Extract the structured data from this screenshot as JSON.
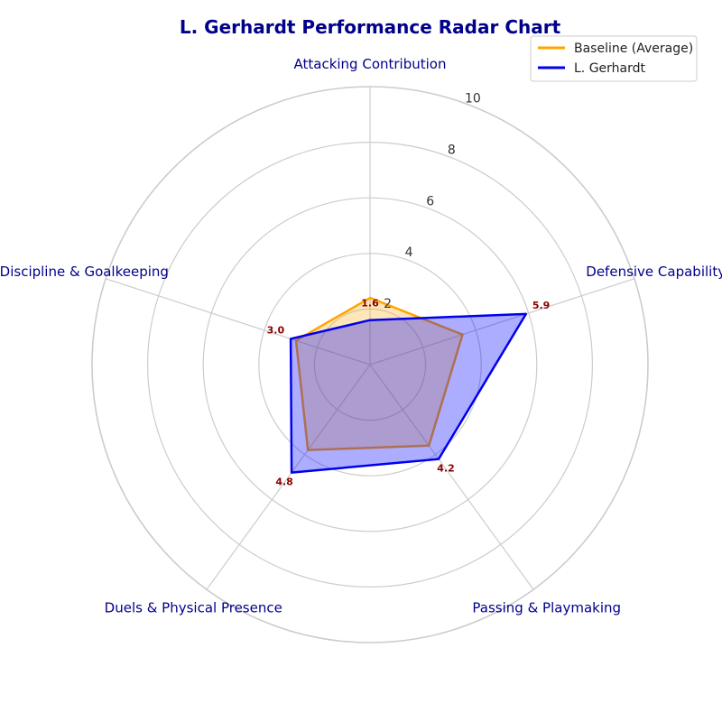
{
  "chart_data": {
    "type": "radar",
    "title": "L. Gerhardt Performance Radar Chart",
    "categories": [
      "Attacking Contribution",
      "Defensive Capability",
      "Passing & Playmaking",
      "Duels & Physical Presence",
      "Discipline & Goalkeeping"
    ],
    "rlim": [
      0,
      10
    ],
    "rticks": [
      2,
      4,
      6,
      8,
      10
    ],
    "rtick_labels": [
      "2",
      "4",
      "6",
      "8",
      "10"
    ],
    "grid": true,
    "legend_position": "top-right",
    "series": [
      {
        "name": "Baseline (Average)",
        "values": [
          2.4,
          3.5,
          3.6,
          3.8,
          2.8
        ],
        "color": "#FFA500",
        "fill": "#FFA500"
      },
      {
        "name": "L. Gerhardt",
        "values": [
          1.6,
          5.9,
          4.2,
          4.8,
          3.0
        ],
        "color": "#0000EE",
        "fill": "#0000FF"
      }
    ],
    "value_labels": [
      "1.6",
      "5.9",
      "4.2",
      "4.8",
      "3.0"
    ]
  }
}
